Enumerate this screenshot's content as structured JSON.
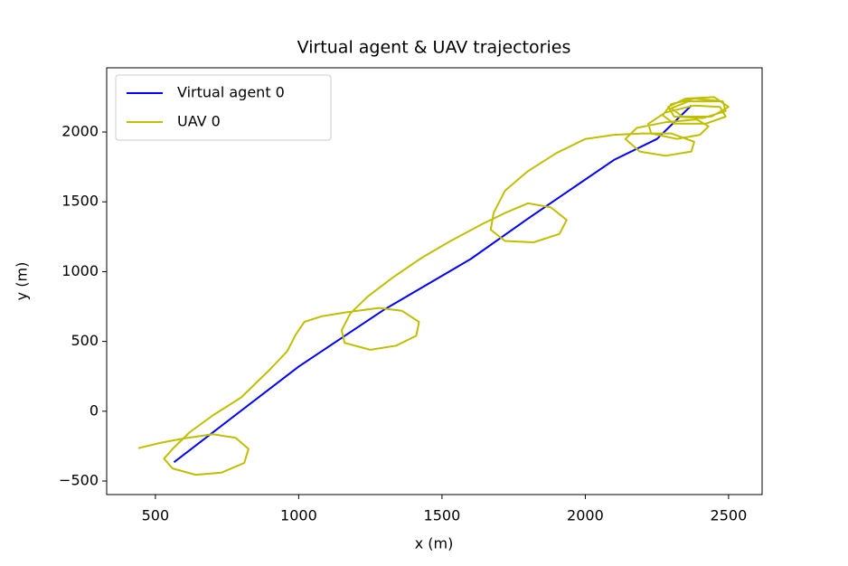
{
  "chart_data": {
    "type": "line",
    "title": "Virtual agent & UAV trajectories",
    "x_label": "x (m)",
    "y_label": "y (m)",
    "xlim": [
      330,
      2617
    ],
    "ylim": [
      -597,
      2460
    ],
    "xticks": [
      500,
      1000,
      1500,
      2000,
      2500
    ],
    "yticks": [
      {
        "value": -500,
        "label": "−500"
      },
      0,
      500,
      1000,
      1500,
      2000
    ],
    "legend": "upper left",
    "grid": false,
    "series": [
      {
        "name": "Virtual agent 0",
        "color": "#0000ff",
        "x": [
          565,
          1000,
          1300,
          1600,
          1800,
          1950,
          2100,
          2250,
          2370
        ],
        "values": [
          -365,
          320,
          730,
          1090,
          1380,
          1590,
          1800,
          1950,
          2190
        ]
      },
      {
        "name": "UAV 0",
        "color": "#bfbf00",
        "x": [
          440,
          520,
          600,
          700,
          780,
          825,
          810,
          730,
          640,
          560,
          530,
          560,
          620,
          700,
          800,
          900,
          960,
          990,
          1020,
          1080,
          1170,
          1280,
          1360,
          1420,
          1410,
          1340,
          1250,
          1160,
          1150,
          1180,
          1240,
          1330,
          1430,
          1530,
          1640,
          1720,
          1800,
          1880,
          1935,
          1910,
          1820,
          1720,
          1670,
          1680,
          1720,
          1800,
          1900,
          2000,
          2100,
          2200,
          2300,
          2380,
          2370,
          2280,
          2190,
          2140,
          2180,
          2280,
          2390,
          2430,
          2400,
          2320,
          2230,
          2220,
          2280,
          2380,
          2470,
          2490,
          2420,
          2310,
          2270,
          2300,
          2380,
          2480,
          2490,
          2410,
          2310,
          2290,
          2350,
          2450,
          2500,
          2440,
          2340,
          2300,
          2360,
          2460
        ],
        "values": [
          -265,
          -225,
          -195,
          -165,
          -190,
          -270,
          -370,
          -440,
          -455,
          -410,
          -340,
          -270,
          -150,
          -30,
          100,
          300,
          430,
          550,
          640,
          680,
          710,
          740,
          720,
          640,
          540,
          470,
          440,
          490,
          580,
          700,
          820,
          960,
          1100,
          1220,
          1340,
          1420,
          1490,
          1460,
          1370,
          1270,
          1210,
          1220,
          1300,
          1420,
          1580,
          1720,
          1850,
          1950,
          1980,
          1990,
          1990,
          1930,
          1860,
          1830,
          1860,
          1950,
          2030,
          2070,
          2090,
          2040,
          1980,
          1950,
          1990,
          2060,
          2140,
          2190,
          2180,
          2110,
          2060,
          2060,
          2120,
          2200,
          2240,
          2220,
          2150,
          2100,
          2110,
          2180,
          2240,
          2250,
          2180,
          2110,
          2110,
          2170,
          2220,
          2220
        ]
      }
    ]
  }
}
